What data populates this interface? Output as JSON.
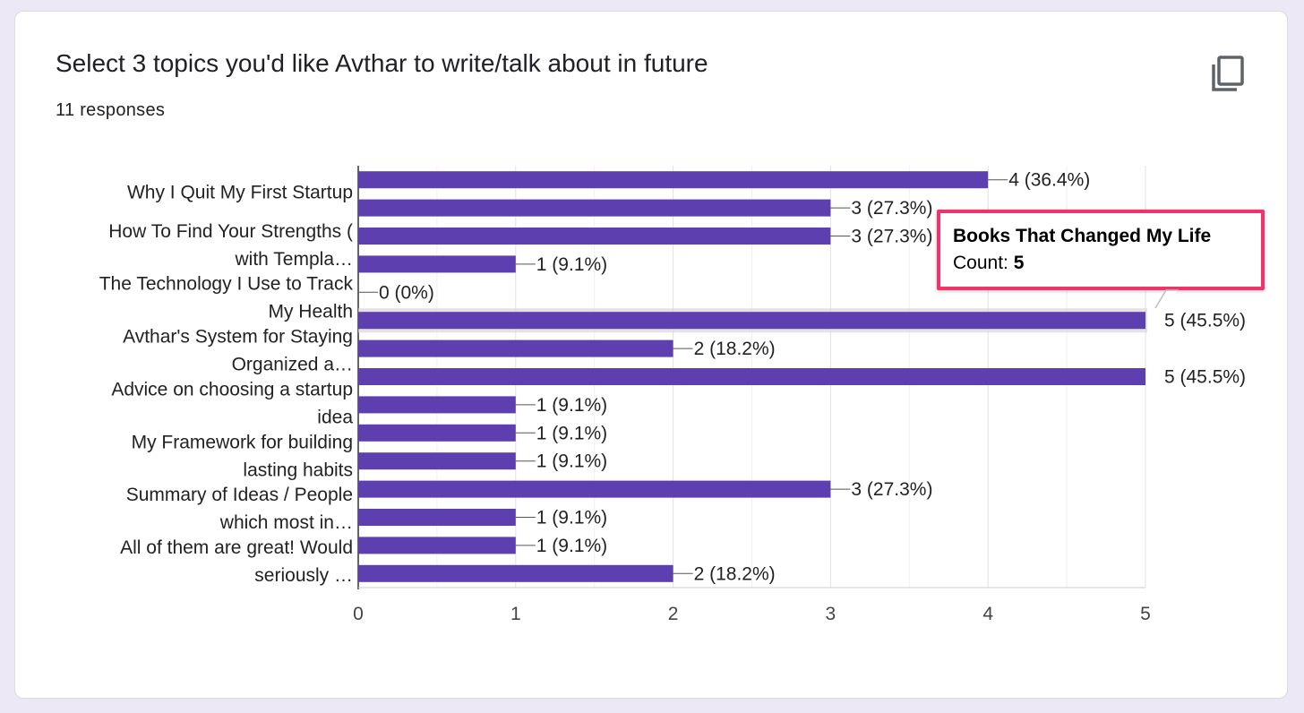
{
  "card": {
    "title": "Select 3 topics you'd like Avthar to write/talk about in future",
    "responses": "11 responses",
    "copy_icon": "copy-icon"
  },
  "colors": {
    "bar": "#5e3fb0",
    "tooltip_border": "#f0336b",
    "text": "#202124",
    "grid": "#e6e6e6"
  },
  "tooltip": {
    "title": "Books That Changed My Life",
    "count_label": "Count: ",
    "count_value": "5"
  },
  "chart_data": {
    "type": "bar",
    "orientation": "horizontal",
    "xlim": [
      0,
      5
    ],
    "x_ticks": [
      "0",
      "1",
      "2",
      "3",
      "4",
      "5"
    ],
    "grid": true,
    "category_labels": [
      [
        "Why I Quit My First Startup"
      ],
      [
        "How To Find Your Strengths (",
        "with Templa…"
      ],
      [
        "The Technology I Use to Track",
        "My Health"
      ],
      [
        "Avthar's System for Staying",
        "Organized a…"
      ],
      [
        "Advice on choosing a startup",
        "idea"
      ],
      [
        "My Framework for building",
        "lasting habits"
      ],
      [
        "Summary of Ideas / People",
        "which most in…"
      ],
      [
        "All of them are great! Would",
        "seriously …"
      ]
    ],
    "values": [
      4,
      3,
      3,
      1,
      0,
      5,
      2,
      5,
      1,
      1,
      1,
      3,
      1,
      1,
      2
    ],
    "data_labels": [
      "4 (36.4%)",
      "3 (27.3%)",
      "3 (27.3%)",
      "1 (9.1%)",
      "0 (0%)",
      "5 (45.5%)",
      "2 (18.2%)",
      "5 (45.5%)",
      "1 (9.1%)",
      "1 (9.1%)",
      "1 (9.1%)",
      "3 (27.3%)",
      "1 (9.1%)",
      "1 (9.1%)",
      "2 (18.2%)"
    ],
    "highlighted_index": 5
  }
}
